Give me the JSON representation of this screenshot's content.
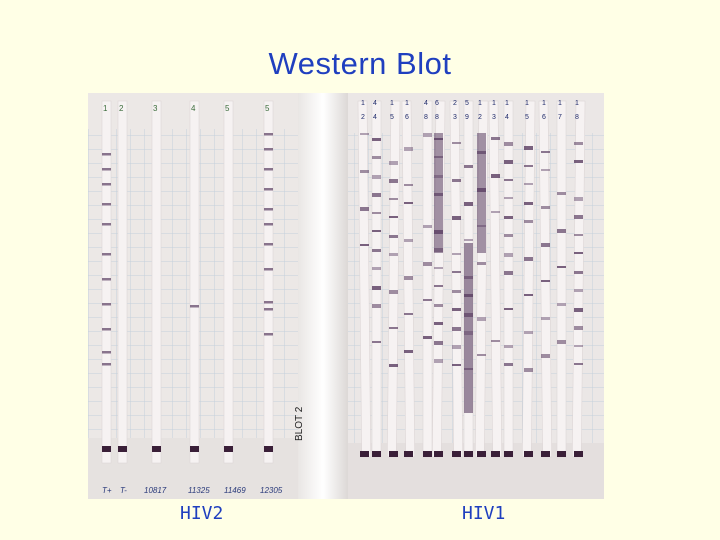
{
  "slide": {
    "title": "Western Blot",
    "label_hiv2": "HIV2",
    "label_hiv1": "HIV1"
  },
  "photo": {
    "description_icon": "western-blot-photo",
    "hiv2_strip_numbers": [
      "1",
      "2",
      "3",
      "4",
      "5",
      "5"
    ],
    "hiv2_bottom_labels": [
      "T+",
      "T-",
      "10817",
      "11325",
      "11469",
      "12305"
    ],
    "blot_side_label": "BLOT 2",
    "hiv1_strip_numbers": [
      "1",
      "4",
      "1",
      "1",
      "4",
      "6",
      "2",
      "5",
      "1",
      "1",
      "1",
      "1",
      "1",
      "1",
      "1"
    ],
    "hiv1_strip_numbers_row2": [
      "2",
      "4",
      "5",
      "6",
      "8",
      "8",
      "3",
      "9",
      "2",
      "3",
      "4",
      "5",
      "6",
      "7",
      "8"
    ],
    "colors": {
      "paper": "#efeae6",
      "grid": "#b9c7d6",
      "strip": "#f6f2f2",
      "band": "#5b3f63",
      "marker": "#3a1f38",
      "text_blue": "#1f3fbf"
    }
  }
}
